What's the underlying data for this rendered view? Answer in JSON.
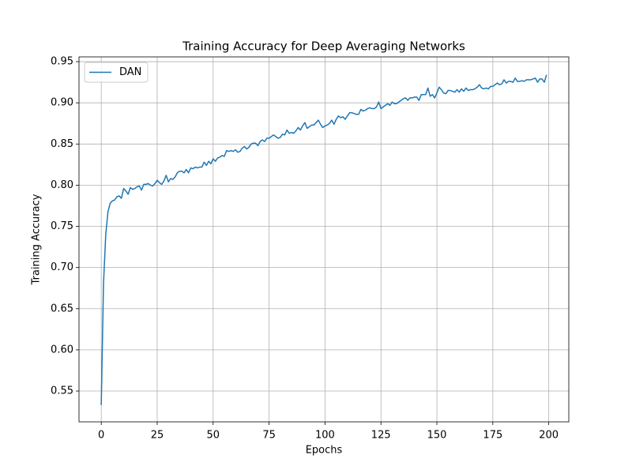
{
  "chart_data": {
    "type": "line",
    "title": "Training Accuracy for Deep Averaging Networks",
    "xlabel": "Epochs",
    "ylabel": "Training Accuracy",
    "x": [
      0,
      1,
      2,
      3,
      4,
      5,
      6,
      7,
      8,
      9,
      10,
      11,
      12,
      13,
      14,
      15,
      16,
      17,
      18,
      19,
      20,
      21,
      22,
      23,
      24,
      25,
      26,
      27,
      28,
      29,
      30,
      31,
      32,
      33,
      34,
      35,
      36,
      37,
      38,
      39,
      40,
      41,
      42,
      43,
      44,
      45,
      46,
      47,
      48,
      49,
      50,
      51,
      52,
      53,
      54,
      55,
      56,
      57,
      58,
      59,
      60,
      61,
      62,
      63,
      64,
      65,
      66,
      67,
      68,
      69,
      70,
      71,
      72,
      73,
      74,
      75,
      76,
      77,
      78,
      79,
      80,
      81,
      82,
      83,
      84,
      85,
      86,
      87,
      88,
      89,
      90,
      91,
      92,
      93,
      94,
      95,
      96,
      97,
      98,
      99,
      100,
      101,
      102,
      103,
      104,
      105,
      106,
      107,
      108,
      109,
      110,
      111,
      112,
      113,
      114,
      115,
      116,
      117,
      118,
      119,
      120,
      121,
      122,
      123,
      124,
      125,
      126,
      127,
      128,
      129,
      130,
      131,
      132,
      133,
      134,
      135,
      136,
      137,
      138,
      139,
      140,
      141,
      142,
      143,
      144,
      145,
      146,
      147,
      148,
      149,
      150,
      151,
      152,
      153,
      154,
      155,
      156,
      157,
      158,
      159,
      160,
      161,
      162,
      163,
      164,
      165,
      166,
      167,
      168,
      169,
      170,
      171,
      172,
      173,
      174,
      175,
      176,
      177,
      178,
      179,
      180,
      181,
      182,
      183,
      184,
      185,
      186,
      187,
      188,
      189,
      190,
      191,
      192,
      193,
      194,
      195,
      196,
      197,
      198,
      199
    ],
    "series": [
      {
        "name": "DAN",
        "color": "#1f77b4",
        "values": [
          0.533,
          0.68,
          0.74,
          0.768,
          0.778,
          0.781,
          0.782,
          0.786,
          0.787,
          0.784,
          0.796,
          0.793,
          0.789,
          0.797,
          0.795,
          0.796,
          0.798,
          0.799,
          0.794,
          0.801,
          0.801,
          0.802,
          0.8,
          0.799,
          0.802,
          0.806,
          0.803,
          0.801,
          0.805,
          0.812,
          0.804,
          0.808,
          0.807,
          0.81,
          0.815,
          0.817,
          0.817,
          0.815,
          0.819,
          0.815,
          0.821,
          0.82,
          0.822,
          0.821,
          0.822,
          0.822,
          0.828,
          0.824,
          0.829,
          0.826,
          0.832,
          0.829,
          0.833,
          0.834,
          0.836,
          0.835,
          0.842,
          0.841,
          0.842,
          0.841,
          0.843,
          0.84,
          0.841,
          0.845,
          0.847,
          0.844,
          0.846,
          0.85,
          0.851,
          0.851,
          0.848,
          0.853,
          0.855,
          0.853,
          0.857,
          0.857,
          0.859,
          0.861,
          0.859,
          0.857,
          0.858,
          0.862,
          0.861,
          0.867,
          0.863,
          0.864,
          0.863,
          0.866,
          0.87,
          0.867,
          0.872,
          0.876,
          0.869,
          0.871,
          0.873,
          0.873,
          0.876,
          0.879,
          0.874,
          0.87,
          0.872,
          0.873,
          0.875,
          0.879,
          0.874,
          0.88,
          0.884,
          0.882,
          0.883,
          0.88,
          0.884,
          0.888,
          0.888,
          0.887,
          0.886,
          0.886,
          0.892,
          0.89,
          0.891,
          0.893,
          0.894,
          0.893,
          0.893,
          0.895,
          0.901,
          0.893,
          0.895,
          0.897,
          0.899,
          0.897,
          0.901,
          0.899,
          0.899,
          0.901,
          0.903,
          0.905,
          0.906,
          0.903,
          0.906,
          0.906,
          0.907,
          0.907,
          0.903,
          0.91,
          0.91,
          0.91,
          0.918,
          0.908,
          0.91,
          0.906,
          0.912,
          0.919,
          0.916,
          0.912,
          0.911,
          0.915,
          0.915,
          0.914,
          0.913,
          0.916,
          0.913,
          0.917,
          0.914,
          0.918,
          0.915,
          0.916,
          0.916,
          0.917,
          0.919,
          0.922,
          0.918,
          0.917,
          0.918,
          0.917,
          0.92,
          0.92,
          0.922,
          0.924,
          0.922,
          0.923,
          0.928,
          0.924,
          0.926,
          0.926,
          0.925,
          0.93,
          0.926,
          0.926,
          0.927,
          0.926,
          0.928,
          0.928,
          0.928,
          0.929,
          0.93,
          0.925,
          0.929,
          0.929,
          0.925,
          0.934
        ]
      }
    ],
    "xlim": [
      -9.95,
      208.95
    ],
    "xticks": [
      0,
      25,
      50,
      75,
      100,
      125,
      150,
      175,
      200
    ],
    "ylim": [
      0.5126,
      0.9558
    ],
    "yticks": [
      0.55,
      {
        "value": 0.6,
        "label": "0.60"
      },
      0.65,
      {
        "value": 0.7,
        "label": "0.70"
      },
      0.75,
      {
        "value": 0.8,
        "label": "0.80"
      },
      0.85,
      {
        "value": 0.9,
        "label": "0.90"
      },
      0.95
    ],
    "grid": true,
    "legend": "upper-left"
  }
}
